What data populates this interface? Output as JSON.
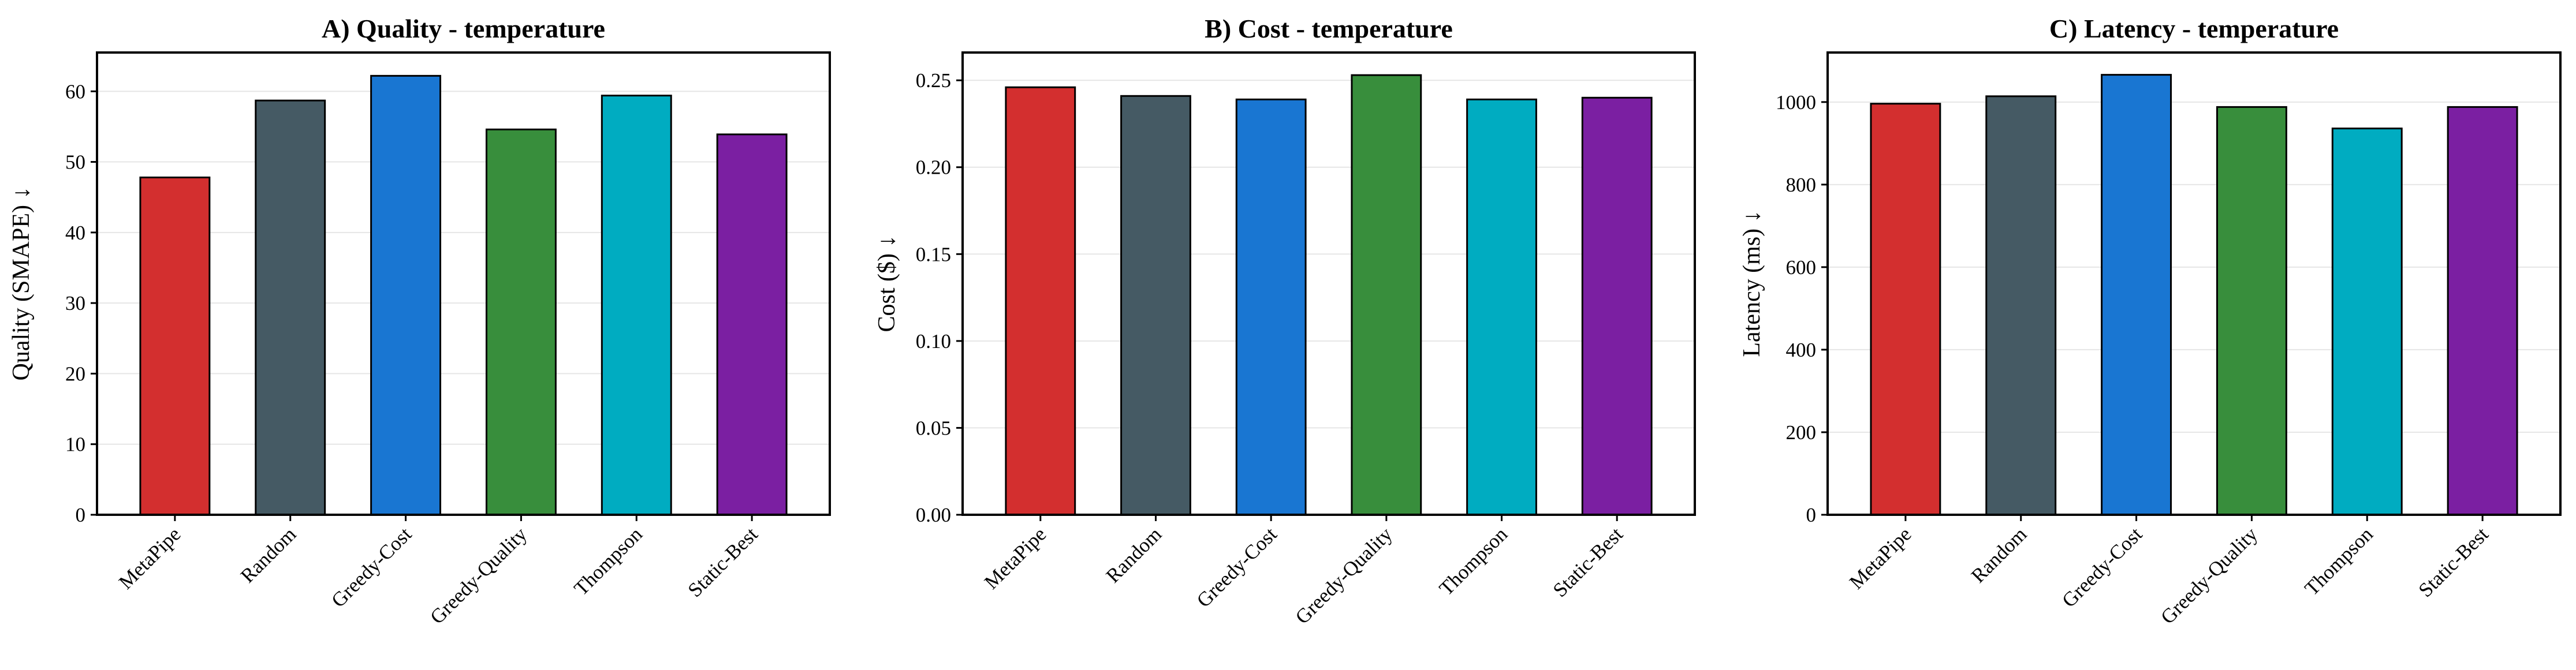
{
  "chart_data": [
    {
      "type": "bar",
      "title": "A) Quality - temperature",
      "ylabel": "Quality (SMAPE) ↓",
      "xlabel": "",
      "categories": [
        "MetaPipe",
        "Random",
        "Greedy-Cost",
        "Greedy-Quality",
        "Thompson",
        "Static-Best"
      ],
      "values": [
        47.8,
        58.7,
        62.2,
        54.6,
        59.4,
        53.9
      ],
      "ylim": [
        0,
        65.5
      ],
      "yticks": [
        0,
        10,
        20,
        30,
        40,
        50,
        60
      ],
      "ytick_labels": [
        "0",
        "10",
        "20",
        "30",
        "40",
        "50",
        "60"
      ],
      "grid": true
    },
    {
      "type": "bar",
      "title": "B) Cost - temperature",
      "ylabel": "Cost ($) ↓",
      "xlabel": "",
      "categories": [
        "MetaPipe",
        "Random",
        "Greedy-Cost",
        "Greedy-Quality",
        "Thompson",
        "Static-Best"
      ],
      "values": [
        0.246,
        0.241,
        0.239,
        0.253,
        0.239,
        0.24
      ],
      "ylim": [
        0,
        0.266
      ],
      "yticks": [
        0,
        0.05,
        0.1,
        0.15,
        0.2,
        0.25
      ],
      "ytick_labels": [
        "0.00",
        "0.05",
        "0.10",
        "0.15",
        "0.20",
        "0.25"
      ],
      "grid": true
    },
    {
      "type": "bar",
      "title": "C) Latency - temperature",
      "ylabel": "Latency (ms) ↓",
      "xlabel": "",
      "categories": [
        "MetaPipe",
        "Random",
        "Greedy-Cost",
        "Greedy-Quality",
        "Thompson",
        "Static-Best"
      ],
      "values": [
        996,
        1014,
        1066,
        988,
        936,
        988
      ],
      "ylim": [
        0,
        1120
      ],
      "yticks": [
        0,
        200,
        400,
        600,
        800,
        1000
      ],
      "ytick_labels": [
        "0",
        "200",
        "400",
        "600",
        "800",
        "1000"
      ],
      "grid": true
    }
  ],
  "colors": [
    "#d32f2f",
    "#455a64",
    "#1976d2",
    "#388e3c",
    "#00acc1",
    "#7b1fa2"
  ]
}
